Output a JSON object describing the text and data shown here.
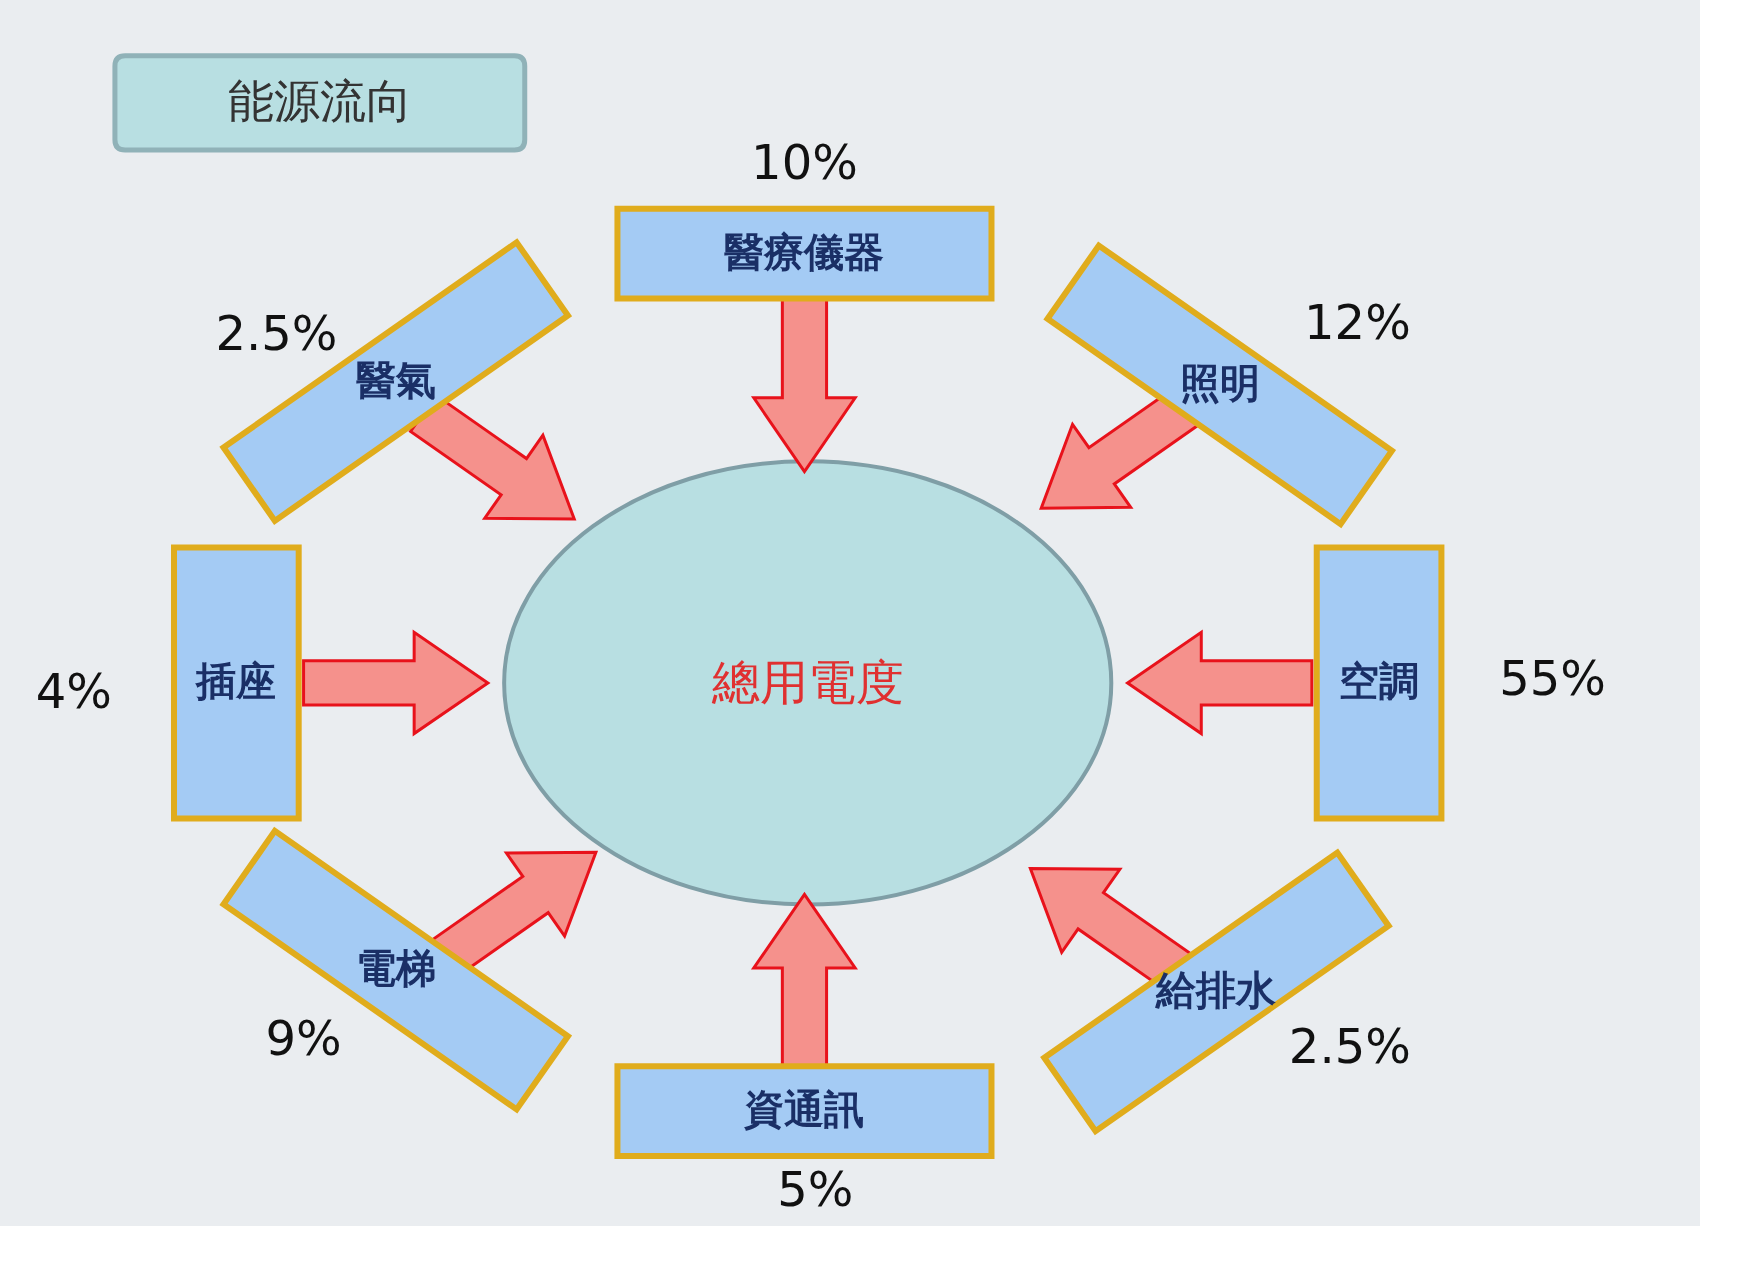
{
  "chart_data": {
    "type": "other",
    "title": "能源流向",
    "annotations": [
      "總用電度"
    ],
    "categories": [
      "醫療儀器",
      "照明",
      "空調",
      "給排水",
      "資通訊",
      "電梯",
      "插座",
      "醫氣"
    ],
    "values": [
      10,
      12,
      55,
      2.5,
      5,
      9,
      4,
      2.5
    ],
    "value_labels": [
      "10%",
      "12%",
      "55%",
      "2.5%",
      "5%",
      "9%",
      "4%",
      "2.5%"
    ]
  }
}
